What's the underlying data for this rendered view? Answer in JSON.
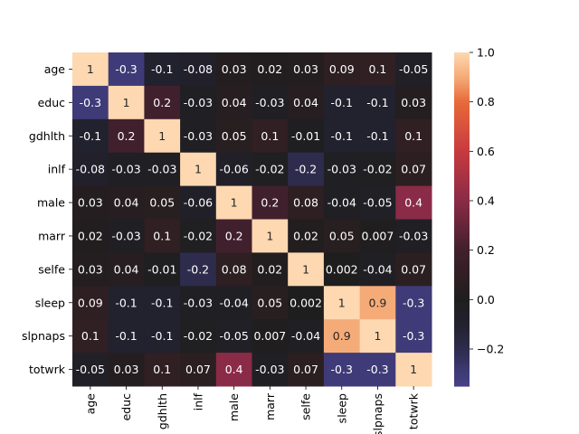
{
  "chart_data": {
    "type": "heatmap",
    "title": "",
    "xlabel": "",
    "ylabel": "",
    "row_labels": [
      "age",
      "educ",
      "gdhlth",
      "inlf",
      "male",
      "marr",
      "selfe",
      "sleep",
      "slpnaps",
      "totwrk"
    ],
    "col_labels": [
      "age",
      "educ",
      "gdhlth",
      "inlf",
      "male",
      "marr",
      "selfe",
      "sleep",
      "slpnaps",
      "totwrk"
    ],
    "values": [
      [
        1,
        -0.3,
        -0.1,
        -0.08,
        0.03,
        0.02,
        0.03,
        0.09,
        0.1,
        -0.05
      ],
      [
        -0.3,
        1,
        0.2,
        -0.03,
        0.04,
        -0.03,
        0.04,
        -0.1,
        -0.1,
        0.03
      ],
      [
        -0.1,
        0.2,
        1,
        -0.03,
        0.05,
        0.1,
        -0.01,
        -0.1,
        -0.1,
        0.1
      ],
      [
        -0.08,
        -0.03,
        -0.03,
        1,
        -0.06,
        -0.02,
        -0.2,
        -0.03,
        -0.02,
        0.07
      ],
      [
        0.03,
        0.04,
        0.05,
        -0.06,
        1,
        0.2,
        0.08,
        -0.04,
        -0.05,
        0.4
      ],
      [
        0.02,
        -0.03,
        0.1,
        -0.02,
        0.2,
        1,
        0.02,
        0.05,
        0.007,
        -0.03
      ],
      [
        0.03,
        0.04,
        -0.01,
        -0.2,
        0.08,
        0.02,
        1,
        0.002,
        -0.04,
        0.07
      ],
      [
        0.09,
        -0.1,
        -0.1,
        -0.03,
        -0.04,
        0.05,
        0.002,
        1,
        0.9,
        -0.3
      ],
      [
        0.1,
        -0.1,
        -0.1,
        -0.02,
        -0.05,
        0.007,
        -0.04,
        0.9,
        1,
        -0.3
      ],
      [
        -0.05,
        0.03,
        0.1,
        0.07,
        0.4,
        -0.03,
        0.07,
        -0.3,
        -0.3,
        1
      ]
    ],
    "colormap": "icefire",
    "center": 0,
    "colorbar": {
      "range": [
        -0.35,
        1.0
      ],
      "ticks": [
        -0.2,
        0.0,
        0.2,
        0.4,
        0.6,
        0.8,
        1.0
      ],
      "tick_labels": [
        "−0.2",
        "0.0",
        "0.2",
        "0.4",
        "0.6",
        "0.8",
        "1.0"
      ]
    },
    "annotations": true,
    "grid": false
  }
}
